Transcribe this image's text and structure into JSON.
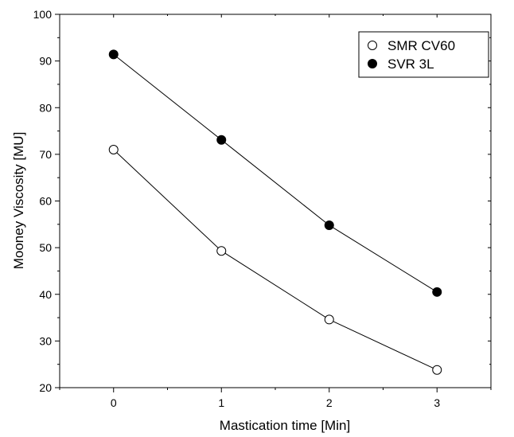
{
  "chart_data": {
    "type": "line",
    "xlabel": "Mastication time [Min]",
    "ylabel": "Mooney Viscosity [MU]",
    "x": [
      0,
      1,
      2,
      3
    ],
    "xticks": [
      "0",
      "1",
      "2",
      "3"
    ],
    "xlim": [
      -0.5,
      3.5
    ],
    "ylim": [
      20,
      100
    ],
    "yticks": [
      "20",
      "30",
      "40",
      "50",
      "60",
      "70",
      "80",
      "90",
      "100"
    ],
    "legend_position": "top-right",
    "grid": false,
    "series": [
      {
        "name": "SMR CV60",
        "marker": "open-circle",
        "color": "#000000",
        "values": [
          71.0,
          49.3,
          34.6,
          23.8
        ]
      },
      {
        "name": "SVR 3L",
        "marker": "filled-circle",
        "color": "#000000",
        "values": [
          91.4,
          73.1,
          54.8,
          40.5
        ]
      }
    ]
  }
}
